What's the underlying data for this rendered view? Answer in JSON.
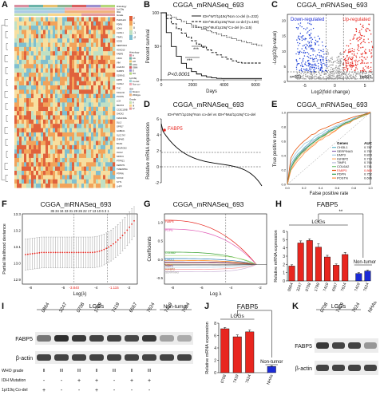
{
  "panel_labels": {
    "A": "A",
    "B": "B",
    "C": "C",
    "D": "D",
    "E": "E",
    "F": "F",
    "G": "G",
    "H": "H",
    "I": "I",
    "J": "J",
    "K": "K"
  },
  "panel_titles": {
    "B": "CGGA_mRNASeq_693",
    "C": "CGGA_mRNASeq_693",
    "D": "CGGA_mRNASeq_693",
    "E": "CGGA_mRNASeq_693",
    "F": "CGGA_mRNASeq_693",
    "G": "CGGA_mRNASeq_693",
    "H": "FABP5",
    "J": "FABP5"
  },
  "heatmap": {
    "title_block": "CGGA_mRNASeq_693",
    "header_tracks": [
      "Histology",
      "1p/19q",
      "IDH",
      "Grade"
    ],
    "legend_values": [
      "2",
      "1",
      "0",
      "-1",
      "-2"
    ],
    "legend_group1": [
      "Histology",
      "A",
      "AA",
      "AO",
      "AOA",
      "GBM",
      "O",
      "OA"
    ],
    "legend_group2": [
      "1p/19q",
      "Co-del",
      "Non co-del"
    ],
    "legend_group3": [
      "IDH",
      "Mutant",
      "Wildtype"
    ],
    "legend_group4": [
      "Grade",
      "II",
      "III",
      "IV"
    ],
    "genes": [
      "PLEKHA4",
      "PDPN",
      "LDHA",
      "CHI3L1",
      "TIMP1",
      "SOD2",
      "SERPINA3",
      "HOXD10",
      "FABP5",
      "CD44",
      "VIM",
      "LGALS3",
      "IGFBP2",
      "S100A11",
      "EMP3",
      "CHI3L2",
      "TNC",
      "TAGLN2",
      "POSTN",
      "LOX",
      "MEOX2",
      "CCDC109B",
      "SHOX2",
      "KIAA1324L",
      "DLL3",
      "GPR17",
      "GABRA1",
      "SLC17A7",
      "ZNF483",
      "BCAN",
      "NEUROD2",
      "OLIG2",
      "NRXN1",
      "PTPRZ1",
      "FERMT1",
      "TMEM255A",
      "PTPRN",
      "SOX10",
      "SYT1",
      "LHFP"
    ]
  },
  "km": {
    "xlabel": "Days",
    "ylabel": "Percent survival",
    "pvalue": "P<0.0001",
    "legend": [
      {
        "label": "IDH^WT/1p19q^Non co-del (n=232)"
      },
      {
        "label": "IDH^Mut/1p19q^Non co-del (n=199)"
      },
      {
        "label": "IDH^Mut/1p19q^Co-del (n=115)"
      }
    ],
    "sig": "***",
    "xticks": [
      "0",
      "2000",
      "4000",
      "6000"
    ],
    "yticks": [
      "0",
      "50",
      "100"
    ]
  },
  "volcano": {
    "xlabel": "Log2(fold change)",
    "ylabel": "-Log10(p-value)",
    "down_label": "Down-regulated",
    "up_label": "Up-regulated",
    "n_down": "n=603",
    "n_up": "n=307",
    "xticks": [
      "-5",
      "0",
      "5"
    ],
    "yticks": [
      "0",
      "5",
      "10",
      "15",
      "20"
    ]
  },
  "rank": {
    "subtitle": "IDH^WT/1p19q^Non co-del vs IDH^Mut/1p19q^Co-del",
    "ylabel": "Relative mRNA expression",
    "highlight": "FABP5",
    "yticks": [
      "-2",
      "0",
      "2",
      "4",
      "6"
    ]
  },
  "roc": {
    "xlabel": "False positive rate",
    "ylabel": "True positive rate",
    "table_header": [
      "Genes",
      "AUC"
    ],
    "rows": [
      {
        "gene": "CHI3L1",
        "auc": "0.787",
        "color": "#5ab4c8"
      },
      {
        "gene": "SERPINA3",
        "auc": "0.752",
        "color": "#8c6bb1"
      },
      {
        "gene": "EMP3",
        "auc": "0.823",
        "color": "#9ecae1"
      },
      {
        "gene": "IGFBP2",
        "auc": "0.719",
        "color": "#fdae6b"
      },
      {
        "gene": "TIMP1",
        "auc": "0.766",
        "color": "#bcbddc"
      },
      {
        "gene": "COL6A2",
        "auc": "0.741",
        "color": "#74c476"
      },
      {
        "gene": "FABP5",
        "auc": "0.868",
        "color": "#e6550d"
      },
      {
        "gene": "PDPN",
        "auc": "0.752",
        "color": "#31a354"
      },
      {
        "gene": "POSTN",
        "auc": "0.696",
        "color": "#fd8d3c"
      }
    ],
    "ticks": [
      "0.0",
      "0.2",
      "0.4",
      "0.6",
      "0.8",
      "1.0"
    ]
  },
  "lasso_cv": {
    "xlabel": "Log(λ)",
    "ylabel": "Partial likelihood deviance",
    "top_ticks": "35 34 34 33 31 29 26 22 17 13 10 6 3 1",
    "lambda_min": "-3.840",
    "lambda_1se": "-1.115",
    "yticks": [
      "12.9",
      "13.0",
      "13.1",
      "13.2",
      "13.3"
    ],
    "xticks": [
      "-8",
      "-6",
      "-4",
      "-2"
    ]
  },
  "lasso_path": {
    "xlabel": "Log λ",
    "ylabel": "Coefficients",
    "labels": [
      "FABP5",
      "PDPN",
      "COL6A2",
      "CHI3L1",
      "EMP3",
      "TIMP1",
      "IGFBP2",
      "SERPINA3"
    ],
    "yticks": [
      "-0.5",
      "0.0",
      "0.5",
      "1.0"
    ],
    "xticks": [
      "-8",
      "-6",
      "-4",
      "-2"
    ]
  },
  "chart_data": [
    {
      "type": "bar",
      "title": "FABP5",
      "ylabel": "Relative mRNA expression",
      "categories": [
        "0864",
        "3247",
        "0708",
        "1789",
        "7419",
        "6567",
        "7624",
        "7419",
        "7624"
      ],
      "values": [
        1.8,
        4.6,
        4.9,
        4.1,
        2.9,
        1.9,
        3.2,
        0.9,
        1.2
      ],
      "errors": [
        0.15,
        0.25,
        0.2,
        0.4,
        0.2,
        0.15,
        0.25,
        0.1,
        0.1
      ],
      "colors": [
        "#e8261f",
        "#e8261f",
        "#e8261f",
        "#e8261f",
        "#e8261f",
        "#e8261f",
        "#e8261f",
        "#1b2bd6",
        "#1b2bd6"
      ],
      "groups": [
        "LGGs",
        "Non-tumor"
      ],
      "sig": "**",
      "ylim": [
        0,
        6
      ],
      "yticks": [
        "0",
        "1",
        "2",
        "3",
        "4",
        "5",
        "6"
      ]
    },
    {
      "type": "bar",
      "title": "FABP5",
      "ylabel": "Relative mRNA expression",
      "categories": [
        "0708",
        "7419",
        "7624",
        "NHAs"
      ],
      "values": [
        7.1,
        5.8,
        6.6,
        1.0
      ],
      "errors": [
        0.2,
        0.3,
        0.3,
        0.1
      ],
      "colors": [
        "#e8261f",
        "#e8261f",
        "#e8261f",
        "#1b2bd6"
      ],
      "groups": [
        "LGGs",
        "Non-tumor"
      ],
      "sig": "**",
      "ylim": [
        0,
        8
      ],
      "yticks": [
        "0",
        "2",
        "4",
        "6",
        "8"
      ]
    }
  ],
  "blot_I": {
    "group_lggs": "LGGs",
    "group_nontumor": "Non-tumor",
    "lanes": [
      "0864",
      "3247",
      "0708",
      "1789",
      "7419",
      "6567",
      "7624",
      "7419",
      "7624"
    ],
    "rows": [
      "FABP5",
      "β-actin"
    ],
    "meta_labels": [
      "WHO grade",
      "IDH Mutation",
      "1p/19q Co-del"
    ],
    "grade": [
      "II",
      "III",
      "III",
      "II",
      "III",
      "II",
      "III",
      "",
      ""
    ],
    "idh": [
      "-",
      "-",
      "+",
      "+",
      "-",
      "+",
      "+",
      "",
      ""
    ],
    "codel": [
      "+",
      "-",
      "-",
      "+",
      "-",
      "-",
      "-",
      "",
      ""
    ],
    "fabp5_intensity": [
      0.55,
      0.9,
      0.85,
      0.8,
      0.8,
      0.78,
      0.85,
      0.35,
      0.3
    ]
  },
  "blot_K": {
    "group": "LGGs",
    "lanes": [
      "0708",
      "7419",
      "7624",
      "NHAs"
    ],
    "rows": [
      "FABP5",
      "β-actin"
    ],
    "fabp5_intensity": [
      0.85,
      0.8,
      0.8,
      0.4
    ]
  }
}
